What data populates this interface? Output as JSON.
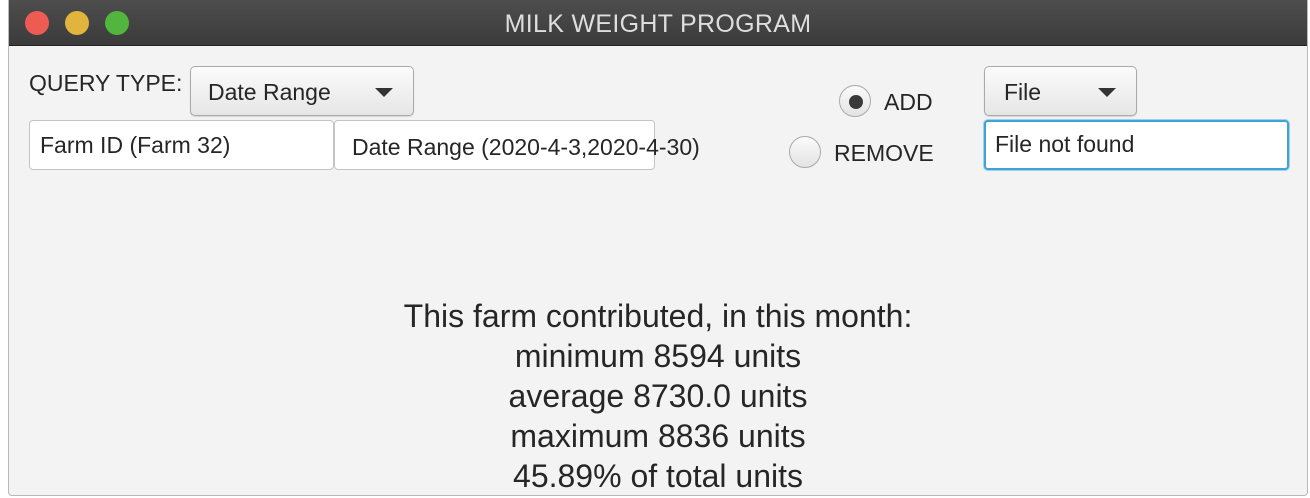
{
  "window": {
    "title": "MILK WEIGHT PROGRAM"
  },
  "query": {
    "label": "QUERY TYPE:",
    "type_selected": "Date Range"
  },
  "inputs": {
    "farm_id": "Farm ID (Farm 32)",
    "date_range": "Date Range (2020-4-3,2020-4-30)"
  },
  "mode": {
    "add_label": "ADD",
    "remove_label": "REMOVE",
    "selected": "ADD"
  },
  "file": {
    "type_selected": "File",
    "status": "File not found"
  },
  "results": {
    "heading": "This farm contributed, in this month:",
    "minimum": "minimum 8594 units",
    "average": "average 8730.0 units",
    "maximum": "maximum 8836 units",
    "percent": "45.89% of total units"
  },
  "colors": {
    "close": "#ee5b52",
    "minimize": "#e1b53d",
    "maximize": "#52b53d",
    "focus_ring": "#3fa3d6"
  }
}
